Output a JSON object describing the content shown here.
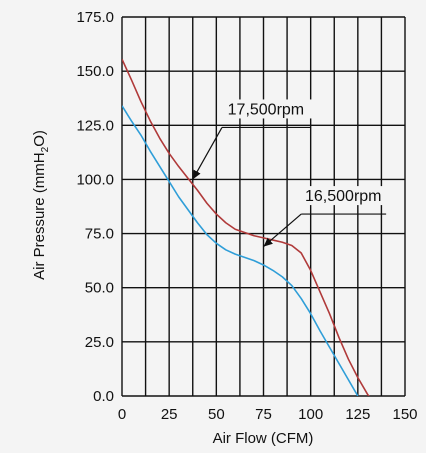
{
  "chart_data": {
    "type": "line",
    "xlabel": "Air Flow (CFM)",
    "ylabel_parts": {
      "main": "Air Pressure (mmH",
      "sub": "2",
      "end": "O)"
    },
    "xlim": [
      0,
      150
    ],
    "ylim": [
      0,
      175
    ],
    "x_ticks": [
      0,
      25,
      50,
      75,
      100,
      125,
      150
    ],
    "y_ticks": [
      0,
      25,
      50,
      75,
      100,
      125,
      150,
      175
    ],
    "x_tick_labels": [
      "0",
      "25",
      "50",
      "75",
      "100",
      "125",
      "150"
    ],
    "y_tick_labels": [
      "0.0",
      "25.0",
      "50.0",
      "75.0",
      "100.0",
      "125.0",
      "150.0",
      "175.0"
    ],
    "x_grid": [
      0,
      12.5,
      25,
      37.5,
      50,
      62.5,
      75,
      87.5,
      100,
      112.5,
      125,
      137.5,
      150
    ],
    "y_grid": [
      0,
      25,
      50,
      75,
      100,
      125,
      150,
      175
    ],
    "grid": true,
    "series": [
      {
        "name": "17,500rpm",
        "color": "#b03a3a",
        "points": [
          [
            0,
            155.5
          ],
          [
            5,
            146
          ],
          [
            10,
            136
          ],
          [
            15,
            127
          ],
          [
            20,
            119
          ],
          [
            25,
            112
          ],
          [
            30,
            106
          ],
          [
            35,
            100.5
          ],
          [
            40,
            95
          ],
          [
            45,
            89
          ],
          [
            50,
            84
          ],
          [
            55,
            80
          ],
          [
            60,
            77
          ],
          [
            65,
            75.5
          ],
          [
            70,
            74
          ],
          [
            75,
            73
          ],
          [
            80,
            72
          ],
          [
            85,
            71
          ],
          [
            90,
            69.5
          ],
          [
            95,
            66
          ],
          [
            100,
            58
          ],
          [
            105,
            48
          ],
          [
            110,
            38
          ],
          [
            115,
            27
          ],
          [
            120,
            17
          ],
          [
            125,
            8.5
          ],
          [
            130,
            1
          ],
          [
            133,
            -3
          ]
        ]
      },
      {
        "name": "16,500rpm",
        "color": "#2f9ed8",
        "points": [
          [
            0,
            134
          ],
          [
            5,
            127
          ],
          [
            10,
            120.5
          ],
          [
            15,
            113
          ],
          [
            20,
            106
          ],
          [
            25,
            99
          ],
          [
            30,
            92
          ],
          [
            35,
            86
          ],
          [
            40,
            80
          ],
          [
            45,
            74.5
          ],
          [
            50,
            70.5
          ],
          [
            55,
            67.5
          ],
          [
            60,
            65.5
          ],
          [
            65,
            64
          ],
          [
            70,
            62.5
          ],
          [
            75,
            60.5
          ],
          [
            80,
            58
          ],
          [
            85,
            55
          ],
          [
            90,
            51
          ],
          [
            95,
            45
          ],
          [
            100,
            38
          ],
          [
            105,
            30
          ],
          [
            110,
            22.5
          ],
          [
            115,
            15
          ],
          [
            120,
            7.5
          ],
          [
            125,
            0
          ]
        ]
      }
    ],
    "annotations": [
      {
        "text": "17,500rpm",
        "series": "17,500rpm",
        "label_at": [
          56,
          130
        ],
        "underline_to": [
          100,
          124
        ],
        "arrow_from": [
          53,
          124
        ],
        "arrow_to": [
          37.5,
          100
        ]
      },
      {
        "text": "16,500rpm",
        "series": "16,500rpm",
        "label_at": [
          97,
          90
        ],
        "underline_to": [
          140,
          84
        ],
        "arrow_from": [
          95,
          84
        ],
        "arrow_to": [
          75,
          69
        ]
      }
    ]
  }
}
